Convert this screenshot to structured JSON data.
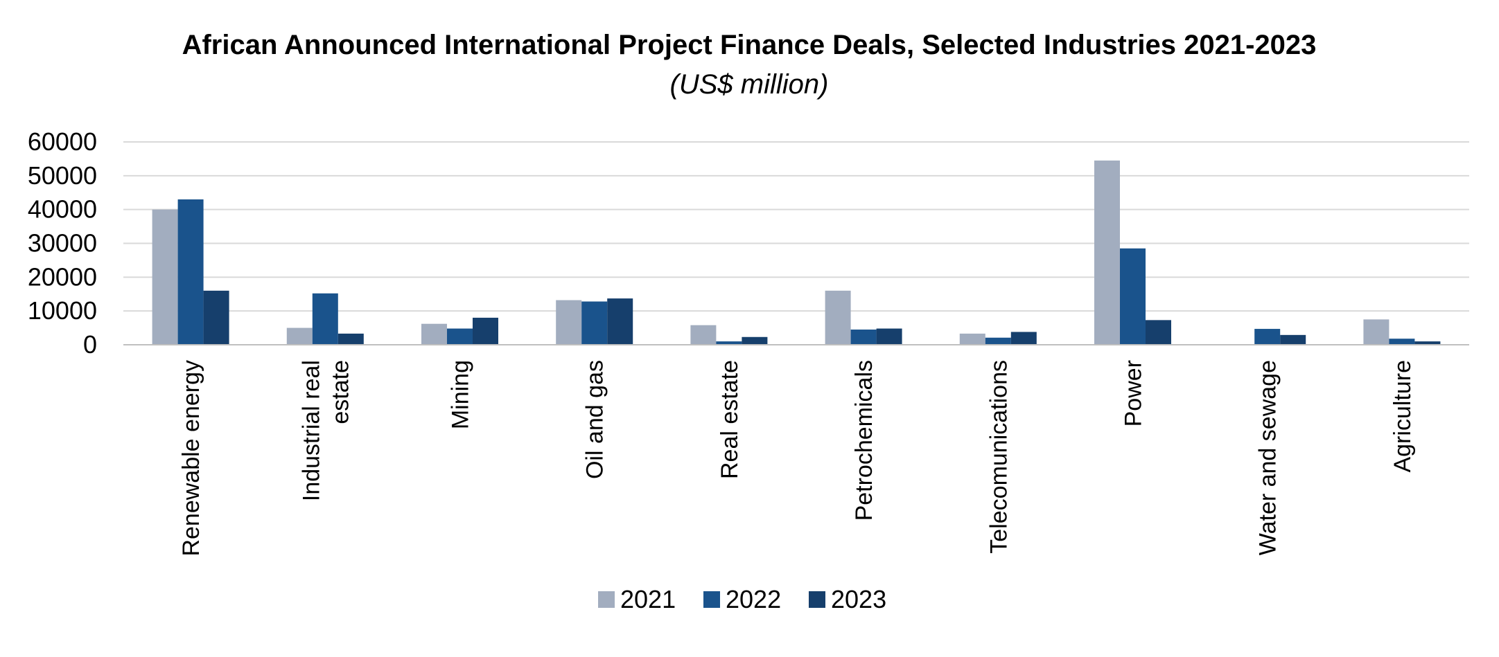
{
  "chart_data": {
    "type": "bar",
    "title": "African Announced International Project Finance Deals, Selected Industries 2021-2023",
    "subtitle": "(US$ million)",
    "xlabel": "",
    "ylabel": "",
    "ylim": [
      0,
      60000
    ],
    "yticks": [
      0,
      10000,
      20000,
      30000,
      40000,
      50000,
      60000
    ],
    "grid": true,
    "legend_position": "bottom",
    "categories": [
      [
        "Renewable energy"
      ],
      [
        "Industrial real",
        "estate"
      ],
      [
        "Mining"
      ],
      [
        "Oil and gas"
      ],
      [
        "Real estate"
      ],
      [
        "Petrochemicals"
      ],
      [
        "Telecomunications"
      ],
      [
        "Power"
      ],
      [
        "Water and sewage"
      ],
      [
        "Agriculture"
      ]
    ],
    "series": [
      {
        "name": "2021",
        "color": "#a2adbf",
        "values": [
          40000,
          5000,
          6200,
          13200,
          5800,
          16000,
          3300,
          54500,
          0,
          7500
        ]
      },
      {
        "name": "2022",
        "color": "#1a538c",
        "values": [
          43000,
          15200,
          4800,
          12800,
          1000,
          4500,
          2100,
          28500,
          4700,
          1800
        ]
      },
      {
        "name": "2023",
        "color": "#163f6c",
        "values": [
          16000,
          3300,
          8000,
          13700,
          2300,
          4800,
          3800,
          7300,
          2900,
          1000
        ]
      }
    ]
  }
}
